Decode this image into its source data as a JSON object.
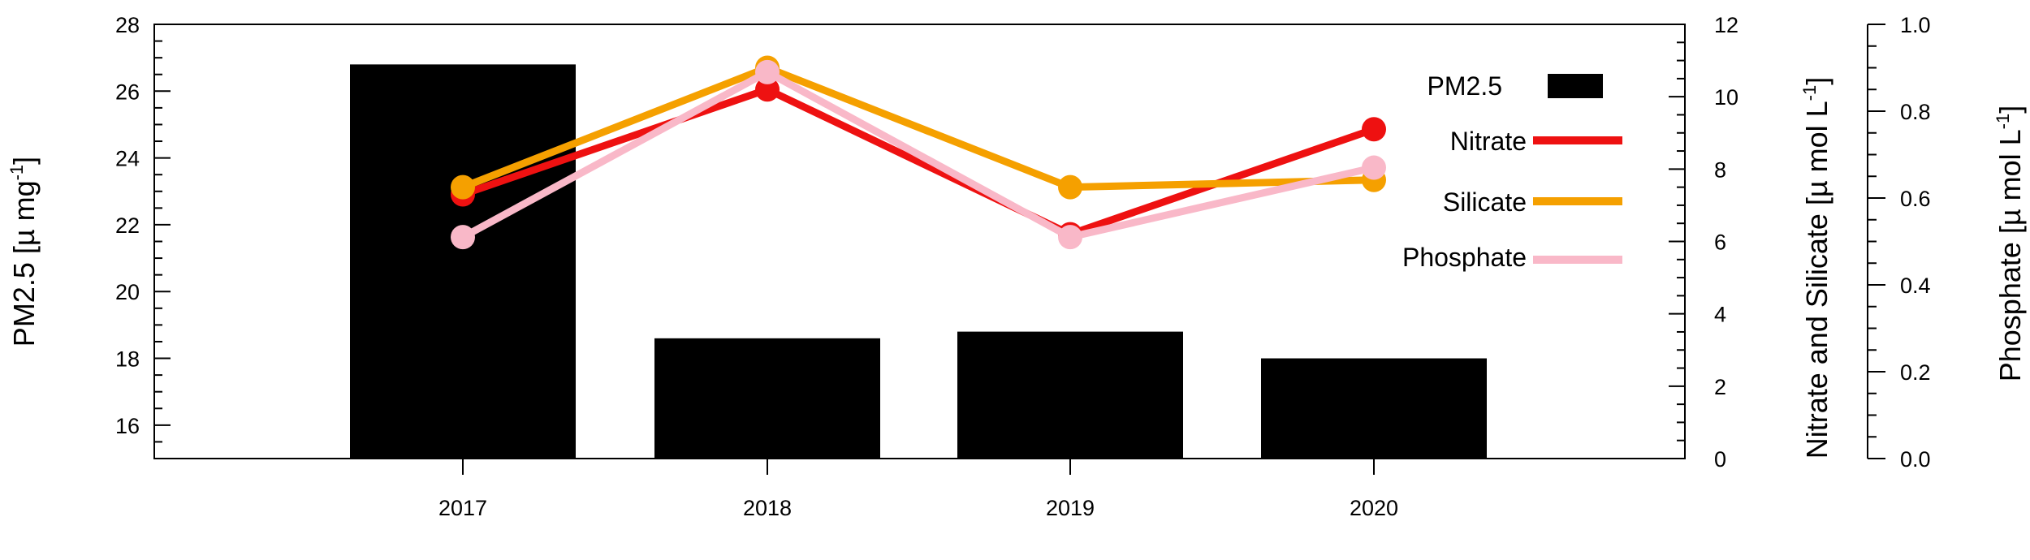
{
  "chart_data": {
    "type": "bar",
    "categories": [
      "2017",
      "2018",
      "2019",
      "2020"
    ],
    "axes": {
      "left": {
        "label_main": "PM2.5 [µ mg",
        "label_sup": "-1",
        "label_end": "]",
        "ylim": [
          15,
          28
        ],
        "ticks": [
          "16",
          "18",
          "20",
          "22",
          "24",
          "26",
          "28"
        ]
      },
      "right1": {
        "label_main": "Nitrate and Silicate [µ mol L",
        "label_sup": "-1",
        "label_end": "]",
        "ylim": [
          0,
          12
        ],
        "ticks": [
          "0",
          "2",
          "4",
          "6",
          "8",
          "10",
          "12"
        ]
      },
      "right2": {
        "label_main": "Phosphate [µ mol L",
        "label_sup": "-1",
        "label_end": "]",
        "ylim": [
          0,
          1
        ],
        "ticks": [
          "0.0",
          "0.2",
          "0.4",
          "0.6",
          "0.8",
          "1.0"
        ]
      }
    },
    "bars": {
      "name": "PM2.5",
      "axis": "left",
      "color": "#000000",
      "values": [
        26.8,
        18.6,
        18.8,
        18.0
      ]
    },
    "series": [
      {
        "name": "Nitrate",
        "axis": "right1",
        "color": "#ee1111",
        "values": [
          7.3,
          10.2,
          6.2,
          9.1
        ]
      },
      {
        "name": "Silicate",
        "axis": "right1",
        "color": "#f5a000",
        "values": [
          7.5,
          10.8,
          7.5,
          7.7
        ]
      },
      {
        "name": "Phosphate",
        "axis": "right2",
        "color": "#f9b8c8",
        "values": [
          0.51,
          0.89,
          0.51,
          0.67
        ]
      }
    ],
    "legend_position": "top-right"
  }
}
